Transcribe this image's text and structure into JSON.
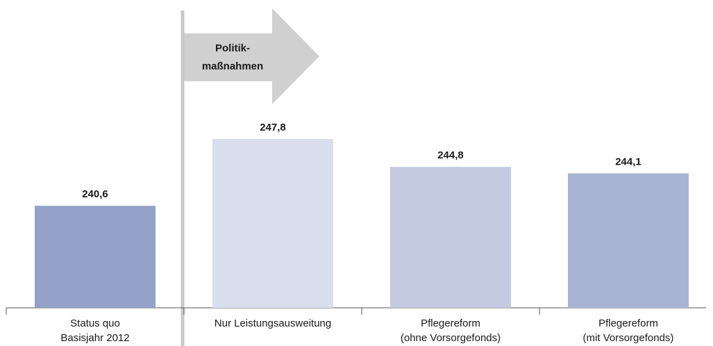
{
  "chart_data": {
    "type": "bar",
    "categories": [
      [
        "Status quo",
        "Basisjahr 2012"
      ],
      [
        "Nur Leistungsausweitung"
      ],
      [
        "Pflegereform",
        "(ohne Vorsorgefonds)"
      ],
      [
        "Pflegereform",
        "(mit Vorsorgefonds)"
      ]
    ],
    "values": [
      240.6,
      247.8,
      244.8,
      244.1
    ],
    "value_labels": [
      "240,6",
      "247,8",
      "244,8",
      "244,1"
    ],
    "colors": [
      "#94a1c8",
      "#d9dfec",
      "#c4cbe0",
      "#a9b4d5"
    ],
    "ylim": [
      229.6,
      261.3
    ],
    "annotation": [
      "Politik-",
      "maßnahmen"
    ]
  }
}
